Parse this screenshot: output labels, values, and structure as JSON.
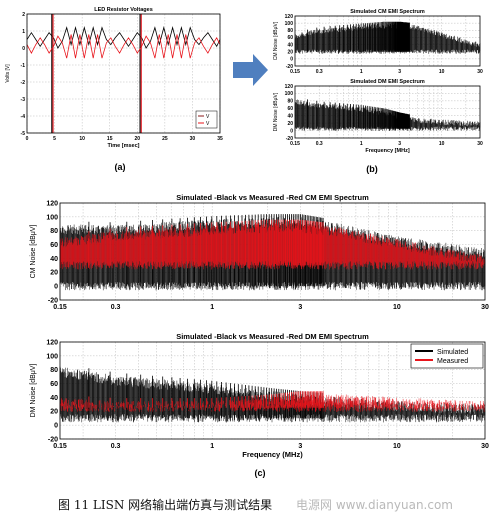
{
  "caption": "图 11   LISN 网络输出端仿真与测试结果",
  "watermark": "电源网  www.dianyuan.com",
  "panel_labels": {
    "a": "(a)",
    "b": "(b)",
    "c": "(c)"
  },
  "arrow_color": "#4f7fbf",
  "colors": {
    "black": "#000000",
    "red": "#e8141b",
    "dark_red": "#8b1a1a"
  },
  "chart_data": [
    {
      "id": "a",
      "type": "line",
      "title": "LED Resistor Voltages",
      "xlabel": "Time [msec]",
      "ylabel": "Volts [V]",
      "xlim": [
        0,
        35
      ],
      "ylim": [
        -5,
        2
      ],
      "xticks": [
        0,
        5,
        10,
        15,
        20,
        25,
        30,
        35
      ],
      "yticks": [
        2,
        1,
        0,
        -1,
        -2,
        -3,
        -4,
        -5
      ],
      "legend": "bottom-right",
      "legend_entries": [
        "V",
        "V"
      ],
      "grid": true,
      "series": [
        {
          "color": "#000000",
          "spikes_at": [
            4.5,
            20.5
          ],
          "x": [
            0,
            0.8,
            1.6,
            2.4,
            3.2,
            4.0,
            4.8,
            5.6,
            6.4,
            7.2,
            8.0,
            8.8,
            9.6,
            10.4,
            11.2,
            12.0,
            12.8,
            13.6,
            14.4,
            15.2,
            16.0,
            16.8,
            17.6,
            18.4,
            19.2,
            20.0,
            20.8,
            21.6,
            22.4,
            23.2,
            24.0,
            24.8,
            25.6,
            26.4,
            27.2,
            28.0,
            28.8,
            29.6,
            30.4,
            31.2,
            32.0,
            32.8,
            33.6,
            34.4,
            35.0
          ],
          "y": [
            0.5,
            0.9,
            0.5,
            0.1,
            0.5,
            0.9,
            0.6,
            0.0,
            0.4,
            1.2,
            0.2,
            1.2,
            0.2,
            1.2,
            0.2,
            1.2,
            0.2,
            1.2,
            0.5,
            0.2,
            0.6,
            0.9,
            0.5,
            0.1,
            0.5,
            0.9,
            0.6,
            0.0,
            0.4,
            1.2,
            0.2,
            1.2,
            0.2,
            1.2,
            0.2,
            1.2,
            0.2,
            1.2,
            0.5,
            0.2,
            0.6,
            0.9,
            0.5,
            0.1,
            0.5
          ]
        },
        {
          "color": "#e8141b",
          "spikes_at": [
            4.5,
            20.5
          ],
          "x": [
            0,
            0.8,
            1.6,
            2.4,
            3.2,
            4.0,
            4.8,
            5.6,
            6.4,
            7.2,
            8.0,
            8.8,
            9.6,
            10.4,
            11.2,
            12.0,
            12.8,
            13.6,
            14.4,
            15.2,
            16.0,
            16.8,
            17.6,
            18.4,
            19.2,
            20.0,
            20.8,
            21.6,
            22.4,
            23.2,
            24.0,
            24.8,
            25.6,
            26.4,
            27.2,
            28.0,
            28.8,
            29.6,
            30.4,
            31.2,
            32.0,
            32.8,
            33.6,
            34.4,
            35.0
          ],
          "y": [
            0.2,
            -0.3,
            0.2,
            0.6,
            0.2,
            -0.3,
            0.1,
            0.7,
            0.3,
            -0.6,
            0.8,
            -0.6,
            0.8,
            -0.6,
            0.8,
            -0.6,
            0.8,
            -0.6,
            0.3,
            0.6,
            0.1,
            -0.3,
            0.2,
            0.6,
            0.2,
            -0.3,
            0.1,
            0.7,
            0.3,
            -0.6,
            0.8,
            -0.6,
            0.8,
            -0.6,
            0.8,
            -0.6,
            0.8,
            -0.6,
            0.3,
            0.6,
            0.1,
            -0.3,
            0.2,
            0.6,
            0.2
          ]
        }
      ]
    },
    {
      "id": "b1",
      "type": "line",
      "title": "Simulated CM EMI Spectrum",
      "xlabel": "",
      "ylabel": "CM Noise [dBμV]",
      "xscale": "log",
      "xlim": [
        0.15,
        30
      ],
      "ylim": [
        -20,
        120
      ],
      "xticks": [
        0.15,
        0.3,
        1,
        3,
        10,
        30
      ],
      "yticks": [
        120,
        100,
        80,
        60,
        40,
        20,
        0,
        -20
      ],
      "grid": true,
      "series": [
        {
          "color": "#000000",
          "envelope_freq_mhz": [
            0.15,
            0.3,
            1,
            2,
            3,
            5,
            10,
            30
          ],
          "envelope_db": [
            70,
            85,
            95,
            100,
            100,
            95,
            75,
            45
          ],
          "floor_db": 20
        }
      ]
    },
    {
      "id": "b2",
      "type": "line",
      "title": "Simulated DM EMI Spectrum",
      "xlabel": "Frequency [MHz]",
      "ylabel": "DM Noise [dBμV]",
      "xscale": "log",
      "xlim": [
        0.15,
        30
      ],
      "ylim": [
        -20,
        120
      ],
      "xticks": [
        0.15,
        0.3,
        1,
        3,
        10,
        30
      ],
      "yticks": [
        120,
        100,
        80,
        60,
        40,
        20,
        0,
        -20
      ],
      "grid": true,
      "series": [
        {
          "color": "#000000",
          "envelope_freq_mhz": [
            0.15,
            0.3,
            1,
            2,
            3,
            5,
            10,
            30
          ],
          "envelope_db": [
            85,
            75,
            65,
            55,
            45,
            35,
            30,
            25
          ],
          "floor_db": 5
        }
      ]
    },
    {
      "id": "c1",
      "type": "line",
      "title": "Simulated -Black vs Measured -Red CM EMI Spectrum",
      "xlabel": "",
      "ylabel": "CM Noise [dBμV]",
      "xscale": "log",
      "xlim": [
        0.15,
        30
      ],
      "ylim": [
        -20,
        120
      ],
      "xticks": [
        0.15,
        0.3,
        1,
        3,
        10,
        30
      ],
      "yticks": [
        120,
        100,
        80,
        60,
        40,
        20,
        0,
        -20
      ],
      "grid": true,
      "series": [
        {
          "color": "#000000",
          "envelope_freq_mhz": [
            0.15,
            0.3,
            1,
            2,
            3,
            5,
            10,
            30
          ],
          "envelope_db": [
            90,
            88,
            97,
            100,
            100,
            90,
            72,
            55
          ],
          "floor_db": 0
        },
        {
          "color": "#e8141b",
          "envelope_freq_mhz": [
            0.15,
            0.3,
            1,
            2,
            3,
            5,
            10,
            30
          ],
          "envelope_db": [
            70,
            80,
            88,
            92,
            92,
            85,
            68,
            45
          ],
          "floor_db": 30
        }
      ]
    },
    {
      "id": "c2",
      "type": "line",
      "title": "Simulated -Black vs Measured -Red DM EMI Spectrum",
      "xlabel": "Frequency (MHz)",
      "ylabel": "DM Noise [dBμV]",
      "xscale": "log",
      "xlim": [
        0.15,
        30
      ],
      "ylim": [
        -20,
        120
      ],
      "xticks": [
        0.15,
        0.3,
        1,
        3,
        10,
        30
      ],
      "yticks": [
        120,
        100,
        80,
        60,
        40,
        20,
        0,
        -20
      ],
      "grid": true,
      "legend": "top-right",
      "series": [
        {
          "name": "Simulated",
          "color": "#000000",
          "envelope_freq_mhz": [
            0.15,
            0.3,
            1,
            2,
            3,
            5,
            10,
            30
          ],
          "envelope_db": [
            85,
            72,
            60,
            50,
            45,
            40,
            35,
            30
          ],
          "floor_db": 10
        },
        {
          "name": "Measured",
          "color": "#e8141b",
          "envelope_freq_mhz": [
            0.15,
            0.3,
            1,
            2,
            3,
            5,
            10,
            30
          ],
          "envelope_db": [
            40,
            35,
            35,
            40,
            45,
            45,
            40,
            35
          ],
          "floor_db": 25
        }
      ]
    }
  ]
}
